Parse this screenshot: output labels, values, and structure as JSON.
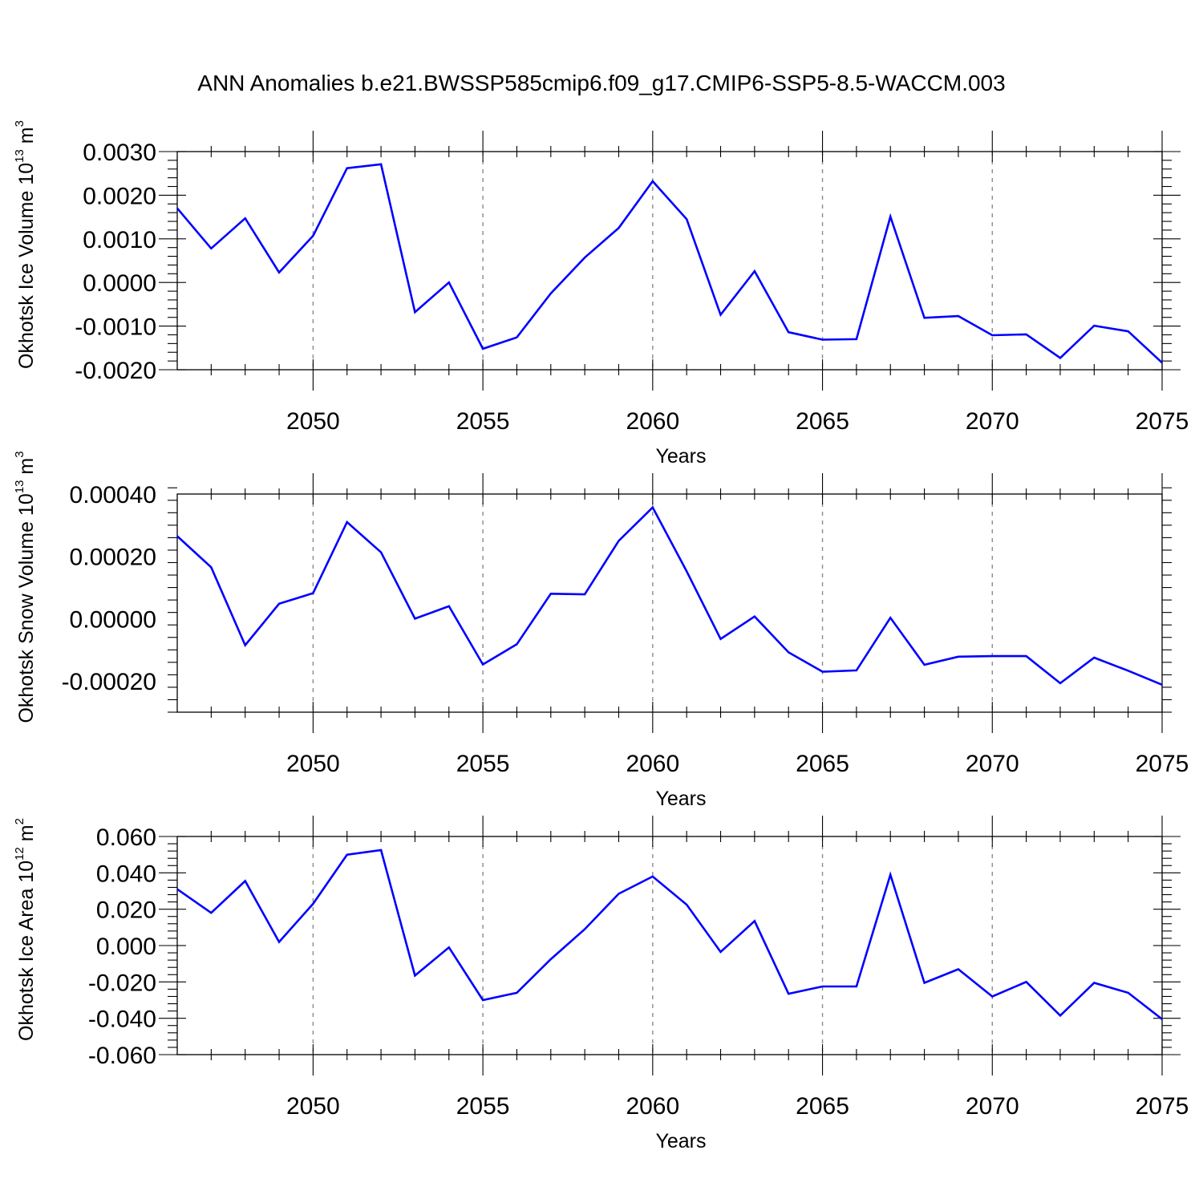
{
  "title": "ANN Anomalies b.e21.BWSSP585cmip6.f09_g17.CMIP6-SSP5-8.5-WACCM.003",
  "colors": {
    "series": "#0000ff",
    "grid": "#8c8c8c"
  },
  "chart_data": [
    {
      "type": "line",
      "ylabel": "Okhotsk Ice Volume 10",
      "ylabel_exp": "13",
      "ylabel_unit": " m",
      "ylabel_unit_exp": "3",
      "xlabel": "Years",
      "xlim": [
        2046,
        2075
      ],
      "ylim": [
        -0.002,
        0.003
      ],
      "yticks": [
        -0.002,
        -0.001,
        0.0,
        0.001,
        0.002,
        0.003
      ],
      "ytick_labels": [
        "-0.0020",
        "-0.0010",
        "0.0000",
        "0.0010",
        "0.0020",
        "0.0030"
      ],
      "yminor_step": 0.0002,
      "xticks": [
        2050,
        2055,
        2060,
        2065,
        2070,
        2075
      ],
      "xtick_labels": [
        "2050",
        "2055",
        "2060",
        "2065",
        "2070",
        "2075"
      ],
      "grid": "x-dashed",
      "x": [
        2046,
        2047,
        2048,
        2049,
        2050,
        2051,
        2052,
        2053,
        2054,
        2055,
        2056,
        2057,
        2058,
        2059,
        2060,
        2061,
        2062,
        2063,
        2064,
        2065,
        2066,
        2067,
        2068,
        2069,
        2070,
        2071,
        2072,
        2073,
        2074,
        2075
      ],
      "values": [
        0.0017,
        0.00078,
        0.00147,
        0.00023,
        0.00107,
        0.00262,
        0.00271,
        -0.00068,
        0.0,
        -0.00152,
        -0.00126,
        -0.00025,
        0.00057,
        0.00125,
        0.00232,
        0.00145,
        -0.00074,
        0.00026,
        -0.00114,
        -0.00131,
        -0.0013,
        0.00151,
        -0.00081,
        -0.00077,
        -0.00121,
        -0.00119,
        -0.00173,
        -0.00099,
        -0.00112,
        -0.00184
      ]
    },
    {
      "type": "line",
      "ylabel": "Okhotsk Snow Volume 10",
      "ylabel_exp": "13",
      "ylabel_unit": " m",
      "ylabel_unit_exp": "3",
      "xlabel": "Years",
      "xlim": [
        2046,
        2075
      ],
      "ylim": [
        -0.0003,
        0.0004
      ],
      "yticks": [
        -0.0002,
        0.0,
        0.0002,
        0.0004
      ],
      "ytick_labels": [
        "-0.00020",
        "0.00000",
        "0.00020",
        "0.00040"
      ],
      "yminor_step": 4e-05,
      "xticks": [
        2050,
        2055,
        2060,
        2065,
        2070,
        2075
      ],
      "xtick_labels": [
        "2050",
        "2055",
        "2060",
        "2065",
        "2070",
        "2075"
      ],
      "grid": "x-dashed",
      "x": [
        2046,
        2047,
        2048,
        2049,
        2050,
        2051,
        2052,
        2053,
        2054,
        2055,
        2056,
        2057,
        2058,
        2059,
        2060,
        2061,
        2062,
        2063,
        2064,
        2065,
        2066,
        2067,
        2068,
        2069,
        2070,
        2071,
        2072,
        2073,
        2074,
        2075
      ],
      "values": [
        0.000265,
        0.000165,
        -8.5e-05,
        4.8e-05,
        8.2e-05,
        0.00031,
        0.000213,
        0.0,
        4e-05,
        -0.000147,
        -8.2e-05,
        8e-05,
        7.8e-05,
        0.00025,
        0.000357,
        0.000152,
        -6.5e-05,
        7e-06,
        -0.000108,
        -0.00017,
        -0.000166,
        3e-06,
        -0.000148,
        -0.000122,
        -0.00012,
        -0.00012,
        -0.000207,
        -0.000125,
        -0.000167,
        -0.000212
      ]
    },
    {
      "type": "line",
      "ylabel": "Okhotsk Ice Area 10",
      "ylabel_exp": "12",
      "ylabel_unit": " m",
      "ylabel_unit_exp": "2",
      "xlabel": "Years",
      "xlim": [
        2046,
        2075
      ],
      "ylim": [
        -0.06,
        0.06
      ],
      "yticks": [
        -0.06,
        -0.04,
        -0.02,
        0.0,
        0.02,
        0.04,
        0.06
      ],
      "ytick_labels": [
        "-0.060",
        "-0.040",
        "-0.020",
        "0.000",
        "0.020",
        "0.040",
        "0.060"
      ],
      "yminor_step": 0.004,
      "xticks": [
        2050,
        2055,
        2060,
        2065,
        2070,
        2075
      ],
      "xtick_labels": [
        "2050",
        "2055",
        "2060",
        "2065",
        "2070",
        "2075"
      ],
      "grid": "x-dashed",
      "x": [
        2046,
        2047,
        2048,
        2049,
        2050,
        2051,
        2052,
        2053,
        2054,
        2055,
        2056,
        2057,
        2058,
        2059,
        2060,
        2061,
        2062,
        2063,
        2064,
        2065,
        2066,
        2067,
        2068,
        2069,
        2070,
        2071,
        2072,
        2073,
        2074,
        2075
      ],
      "values": [
        0.031,
        0.018,
        0.0355,
        0.002,
        0.023,
        0.05,
        0.0525,
        -0.0165,
        -0.001,
        -0.03,
        -0.026,
        -0.0075,
        0.009,
        0.0285,
        0.038,
        0.0225,
        -0.0035,
        0.0135,
        -0.0265,
        -0.0225,
        -0.0225,
        0.039,
        -0.0205,
        -0.013,
        -0.028,
        -0.02,
        -0.0385,
        -0.0205,
        -0.026,
        -0.0405
      ]
    }
  ]
}
